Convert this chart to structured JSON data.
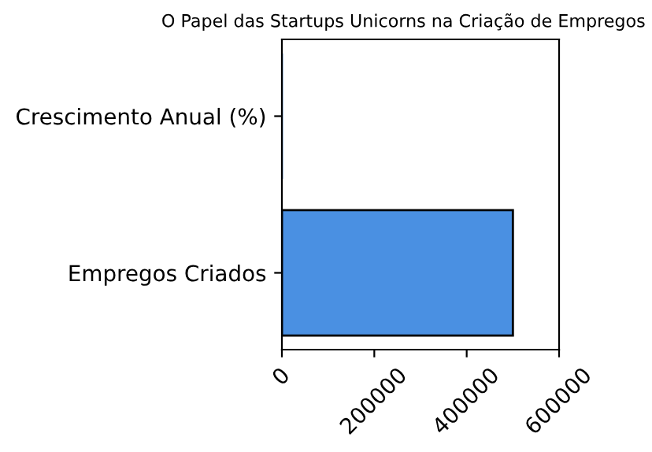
{
  "chart_data": {
    "type": "bar",
    "orientation": "horizontal",
    "title": "O Papel das Startups Unicorns na Criação de Empregos",
    "categories": [
      "Crescimento Anual (%)",
      "Empregos Criados"
    ],
    "values": [
      0,
      500000
    ],
    "color": "#4a90e2",
    "xlim": [
      0,
      600000
    ],
    "xticks": [
      0,
      200000,
      400000,
      600000
    ],
    "grid": false,
    "legend": false
  }
}
